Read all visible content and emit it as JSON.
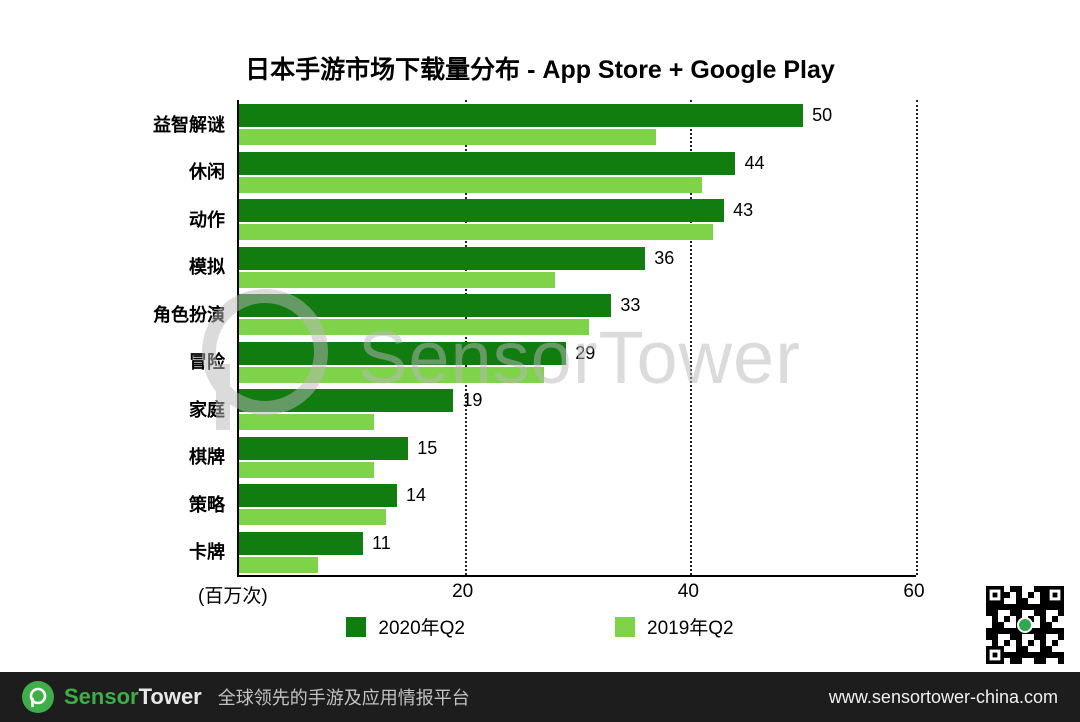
{
  "title": "日本手游市场下载量分布 - App Store + Google Play",
  "watermark": "SensorTower",
  "chart_data": {
    "type": "bar",
    "orientation": "horizontal",
    "title": "日本手游市场下载量分布 - App Store + Google Play",
    "categories": [
      "益智解谜",
      "休闲",
      "动作",
      "模拟",
      "角色扮演",
      "冒险",
      "家庭",
      "棋牌",
      "策略",
      "卡牌"
    ],
    "series": [
      {
        "name": "2020年Q2",
        "color": "#117c10",
        "values": [
          50,
          44,
          43,
          36,
          33,
          29,
          19,
          15,
          14,
          11
        ],
        "value_labels_visible": true
      },
      {
        "name": "2019年Q2",
        "color": "#7ed348",
        "values": [
          37,
          41,
          42,
          28,
          31,
          27,
          12,
          12,
          13,
          7
        ],
        "value_labels_visible": false
      }
    ],
    "xlabel": "(百万次)",
    "xlim": [
      0,
      60
    ],
    "xticks": [
      20,
      40,
      60
    ],
    "grid": "dotted-vertical",
    "legend_position": "bottom"
  },
  "footer": {
    "brand_sensor": "Sensor",
    "brand_tower": "Tower",
    "tagline": "全球领先的手游及应用情报平台",
    "url": "www.sensortower-china.com"
  },
  "icons": {
    "logo": "sensortower-logo",
    "qr": "qr-code"
  },
  "colors": {
    "dark_green": "#117c10",
    "light_green": "#7ed348",
    "footer_bg": "#1d1d1d",
    "brand_green": "#3fae49",
    "watermark_gray": "#b9b9b9"
  }
}
